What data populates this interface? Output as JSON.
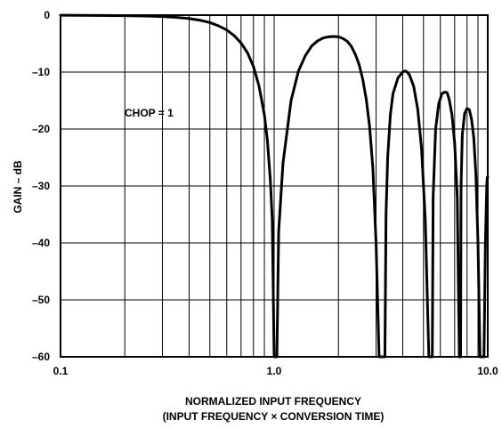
{
  "chart_data": {
    "type": "line",
    "xscale": "log",
    "xlim": [
      0.1,
      10.0
    ],
    "ylim": [
      -60,
      0
    ],
    "grid": true,
    "xticks": [
      {
        "value": 0.1,
        "label": "0.1"
      },
      {
        "value": 1.0,
        "label": "1.0"
      },
      {
        "value": 10.0,
        "label": "10.0"
      }
    ],
    "yticks": [
      {
        "value": 0,
        "label": "0"
      },
      {
        "value": -10,
        "label": "–10"
      },
      {
        "value": -20,
        "label": "–20"
      },
      {
        "value": -30,
        "label": "–30"
      },
      {
        "value": -40,
        "label": "–40"
      },
      {
        "value": -50,
        "label": "–50"
      },
      {
        "value": -60,
        "label": "–60"
      }
    ],
    "xlabel_line1": "NORMALIZED INPUT FREQUENCY",
    "xlabel_line2": "(INPUT FREQUENCY × CONVERSION TIME)",
    "ylabel": "GAIN – dB",
    "annotation": "CHOP = 1",
    "series": [
      {
        "x": [
          0.1,
          0.15,
          0.2,
          0.25,
          0.3,
          0.35,
          0.4,
          0.45,
          0.5,
          0.55,
          0.6,
          0.65,
          0.7,
          0.75,
          0.8,
          0.85,
          0.9,
          0.93,
          0.96,
          0.98,
          1.0,
          1.03,
          1.05,
          1.1,
          1.2,
          1.3,
          1.4,
          1.5,
          1.6,
          1.7,
          1.8,
          1.9,
          2.0,
          2.1,
          2.2,
          2.3,
          2.4,
          2.5,
          2.6,
          2.7,
          2.8,
          2.9,
          3.0,
          3.1,
          3.2,
          3.26,
          3.3,
          3.34,
          3.4,
          3.5,
          3.6,
          3.8,
          4.0,
          4.1,
          4.2,
          4.3,
          4.5,
          4.7,
          4.9,
          5.1,
          5.3,
          5.42,
          5.46,
          5.5,
          5.55,
          5.7,
          5.9,
          6.1,
          6.3,
          6.45,
          6.6,
          6.8,
          7.0,
          7.2,
          7.36,
          7.42,
          7.46,
          7.5,
          7.6,
          7.8,
          8.0,
          8.2,
          8.4,
          8.6,
          8.8,
          9.0,
          9.2,
          9.4,
          9.6,
          9.75,
          9.85,
          9.9,
          9.95,
          10.0
        ],
        "y": [
          -0.02,
          -0.06,
          -0.1,
          -0.15,
          -0.25,
          -0.4,
          -0.6,
          -0.9,
          -1.3,
          -1.9,
          -2.6,
          -3.6,
          -4.9,
          -6.6,
          -9.0,
          -12.5,
          -17.5,
          -22,
          -29,
          -36,
          -60,
          -60,
          -38,
          -26,
          -15,
          -9.8,
          -7.1,
          -5.4,
          -4.5,
          -4.0,
          -3.8,
          -3.75,
          -3.8,
          -4.1,
          -4.6,
          -5.5,
          -6.9,
          -8.7,
          -11.3,
          -14.8,
          -19.7,
          -27,
          -40,
          -60,
          -60,
          -60,
          -60,
          -35,
          -25,
          -17.5,
          -13.8,
          -11.0,
          -10.0,
          -9.8,
          -10.0,
          -10.5,
          -12.5,
          -16.5,
          -23.5,
          -36,
          -60,
          -60,
          -60,
          -60,
          -32,
          -20,
          -15.5,
          -13.8,
          -13.5,
          -13.6,
          -14.8,
          -17.5,
          -22.5,
          -32,
          -60,
          -60,
          -60,
          -30,
          -21,
          -17.2,
          -16.4,
          -16.6,
          -18.3,
          -21.5,
          -28,
          -40,
          -60,
          -60,
          -60,
          -40,
          -33,
          -29.5,
          -28.5,
          -28.5
        ]
      }
    ]
  }
}
